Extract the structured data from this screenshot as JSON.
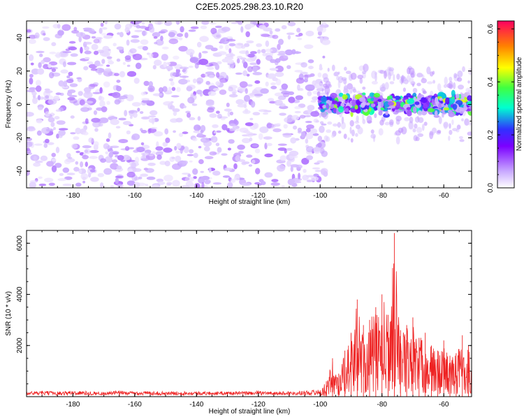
{
  "title": "C2E5.2025.298.23.10.R20",
  "chart_data": [
    {
      "type": "heatmap",
      "xlabel": "Height of straight line (km)",
      "ylabel": "Frequency (Hz)",
      "xlim": [
        -195,
        -51
      ],
      "ylim": [
        -50,
        50
      ],
      "xticks": [
        -180,
        -160,
        -140,
        -120,
        -100,
        -80,
        -60
      ],
      "xtick_labels": [
        "-180",
        "-160",
        "-140",
        "-120",
        "-100",
        "-80",
        "-60"
      ],
      "yticks": [
        -40,
        -20,
        0,
        20,
        40
      ],
      "ytick_labels": [
        "-40",
        "-20",
        "0",
        "20",
        "40"
      ],
      "colorbar": {
        "label": "Normalized spectral amplitude",
        "range": [
          0.0,
          0.63
        ],
        "ticks": [
          0.0,
          0.2,
          0.4,
          0.6
        ],
        "tick_labels": [
          "0.0",
          "0.2",
          "0.4",
          "0.6"
        ],
        "colors": [
          "#ffffff",
          "#c8a8ff",
          "#7b00ff",
          "#3030ff",
          "#00ffd0",
          "#40ff40",
          "#ffff00",
          "#ff8000",
          "#ff0060"
        ]
      },
      "regions": [
        {
          "x_range": [
            -195,
            -101
          ],
          "freq_range": [
            -50,
            50
          ],
          "typical_amplitude": [
            0.02,
            0.1
          ],
          "description_color": "#7b00ff"
        },
        {
          "x_range": [
            -100,
            -51
          ],
          "freq_range": [
            -8,
            8
          ],
          "typical_amplitude": [
            0.05,
            0.45
          ],
          "description_color": "#00c0ff"
        }
      ]
    },
    {
      "type": "line",
      "xlabel": "Height of straight line (km)",
      "ylabel": "SNR (10 * v/v)",
      "xlim": [
        -195,
        -51
      ],
      "ylim": [
        0,
        6500
      ],
      "xticks": [
        -180,
        -160,
        -140,
        -120,
        -100,
        -80,
        -60
      ],
      "xtick_labels": [
        "-180",
        "-160",
        "-140",
        "-120",
        "-100",
        "-80",
        "-60"
      ],
      "yticks": [
        2000,
        4000,
        6000
      ],
      "ytick_labels": [
        "2000",
        "4000",
        "6000"
      ],
      "color": "#ee2222",
      "series": [
        {
          "name": "SNR",
          "x": [
            -195,
            -190,
            -185,
            -180,
            -175,
            -170,
            -165,
            -160,
            -155,
            -150,
            -145,
            -140,
            -135,
            -130,
            -125,
            -120,
            -115,
            -110,
            -105,
            -100,
            -98,
            -96,
            -94,
            -92,
            -90,
            -88,
            -86,
            -84,
            -82,
            -80,
            -78,
            -76,
            -74,
            -72,
            -70,
            -68,
            -66,
            -64,
            -62,
            -60,
            -58,
            -56,
            -54,
            -52
          ],
          "values": [
            150,
            180,
            160,
            200,
            170,
            150,
            190,
            160,
            180,
            150,
            170,
            160,
            150,
            170,
            160,
            180,
            150,
            170,
            190,
            250,
            600,
            1500,
            900,
            1800,
            2500,
            3800,
            2800,
            3000,
            3500,
            4000,
            3200,
            6400,
            2600,
            2800,
            3100,
            2300,
            2500,
            2000,
            1800,
            2200,
            1600,
            1700,
            2400,
            2000
          ]
        }
      ]
    }
  ]
}
